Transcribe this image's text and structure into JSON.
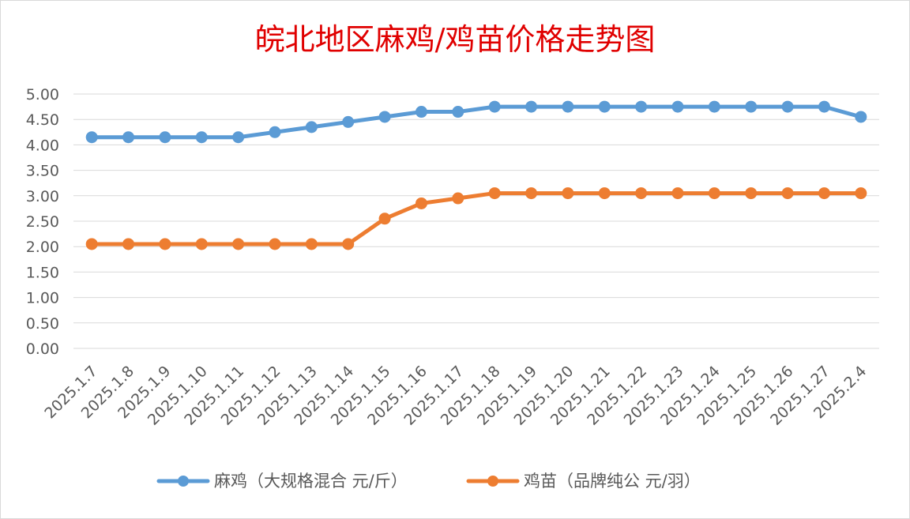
{
  "chart_data": {
    "type": "line",
    "title": "皖北地区麻鸡/鸡苗价格走势图",
    "xlabel": "",
    "ylabel": "",
    "categories": [
      "2025.1.7",
      "2025.1.8",
      "2025.1.9",
      "2025.1.10",
      "2025.1.11",
      "2025.1.12",
      "2025.1.13",
      "2025.1.14",
      "2025.1.15",
      "2025.1.16",
      "2025.1.17",
      "2025.1.18",
      "2025.1.19",
      "2025.1.20",
      "2025.1.21",
      "2025.1.22",
      "2025.1.23",
      "2025.1.24",
      "2025.1.25",
      "2025.1.26",
      "2025.1.27",
      "2025.2.4"
    ],
    "ylim": [
      0,
      5
    ],
    "yticks": [
      "0.00",
      "0.50",
      "1.00",
      "1.50",
      "2.00",
      "2.50",
      "3.00",
      "3.50",
      "4.00",
      "4.50",
      "5.00"
    ],
    "grid": true,
    "legend_position": "bottom",
    "series": [
      {
        "name": "麻鸡（大规格混合 元/斤）",
        "color": "#5b9bd5",
        "values": [
          4.15,
          4.15,
          4.15,
          4.15,
          4.15,
          4.25,
          4.35,
          4.45,
          4.55,
          4.65,
          4.65,
          4.75,
          4.75,
          4.75,
          4.75,
          4.75,
          4.75,
          4.75,
          4.75,
          4.75,
          4.75,
          4.55
        ]
      },
      {
        "name": "鸡苗（品牌纯公 元/羽）",
        "color": "#ed7d31",
        "values": [
          2.05,
          2.05,
          2.05,
          2.05,
          2.05,
          2.05,
          2.05,
          2.05,
          2.55,
          2.85,
          2.95,
          3.05,
          3.05,
          3.05,
          3.05,
          3.05,
          3.05,
          3.05,
          3.05,
          3.05,
          3.05,
          3.05
        ]
      }
    ]
  }
}
